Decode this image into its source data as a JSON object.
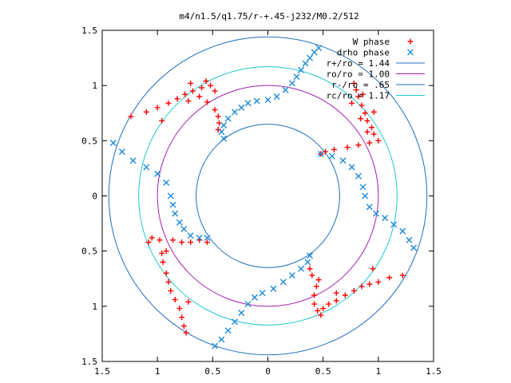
{
  "chart_data": {
    "type": "scatter",
    "title": "m4/n1.5/q1.75/r-+.45-j232/M0.2/512",
    "xlabel": "",
    "ylabel": "",
    "xlim": [
      -1.5,
      1.5
    ],
    "ylim": [
      -1.5,
      1.5
    ],
    "xticks": [
      -1.5,
      -1,
      -0.5,
      0,
      0.5,
      1,
      1.5
    ],
    "yticks": [
      -1.5,
      -1,
      -0.5,
      0,
      0.5,
      1,
      1.5
    ],
    "xtick_labels": [
      "1.5",
      "1",
      "0.5",
      "0",
      "0.5",
      "1",
      "1.5"
    ],
    "ytick_labels": [
      "1.5",
      "1",
      "0.5",
      "0",
      "0.5",
      "1",
      "1.5"
    ],
    "grid": false,
    "legend_position": "top-right",
    "circles": [
      {
        "name": "r+/ro = 1.44",
        "r": 1.44,
        "color": "#1e6fbf"
      },
      {
        "name": "ro/ro = 1.00",
        "r": 1.0,
        "color": "#a020b0"
      },
      {
        "name": "r-/ro = .65",
        "r": 0.65,
        "color": "#1e6fbf"
      },
      {
        "name": "rc/ro = 1.17",
        "r": 1.17,
        "color": "#20c8c8"
      }
    ],
    "series": [
      {
        "name": "W phase",
        "marker": "plus",
        "color": "#ff0000",
        "arms": [
          [
            [
              -1.24,
              0.72
            ],
            [
              -1.1,
              0.76
            ],
            [
              -1.0,
              0.8
            ],
            [
              -0.9,
              0.84
            ],
            [
              -0.82,
              0.88
            ],
            [
              -0.75,
              0.92
            ],
            [
              -0.68,
              0.95
            ],
            [
              -0.62,
              0.9
            ],
            [
              -0.55,
              0.85
            ],
            [
              -0.48,
              0.78
            ],
            [
              -0.45,
              0.72
            ],
            [
              -0.44,
              0.66
            ],
            [
              -0.45,
              0.6
            ],
            [
              -0.48,
              0.95
            ],
            [
              -0.52,
              1.0
            ],
            [
              -0.56,
              1.04
            ],
            [
              -0.6,
              0.98
            ],
            [
              -0.72,
              0.86
            ],
            [
              -0.96,
              0.68
            ],
            [
              -0.7,
              1.02
            ]
          ],
          [
            [
              0.48,
              0.38
            ],
            [
              0.6,
              0.42
            ],
            [
              0.72,
              0.44
            ],
            [
              0.82,
              0.46
            ],
            [
              0.92,
              0.48
            ],
            [
              1.0,
              0.5
            ],
            [
              0.96,
              0.56
            ],
            [
              0.94,
              0.62
            ],
            [
              0.9,
              0.68
            ],
            [
              0.88,
              0.75
            ],
            [
              0.85,
              0.82
            ],
            [
              0.82,
              0.9
            ],
            [
              0.8,
              0.96
            ],
            [
              0.78,
              1.02
            ],
            [
              0.76,
              0.84
            ],
            [
              0.9,
              0.58
            ],
            [
              0.96,
              0.76
            ],
            [
              0.84,
              0.7
            ],
            [
              0.86,
              0.92
            ],
            [
              0.52,
              0.4
            ]
          ],
          [
            [
              1.22,
              -0.72
            ],
            [
              1.1,
              -0.74
            ],
            [
              1.0,
              -0.78
            ],
            [
              0.92,
              -0.8
            ],
            [
              0.85,
              -0.82
            ],
            [
              0.78,
              -0.86
            ],
            [
              0.7,
              -0.9
            ],
            [
              0.62,
              -0.95
            ],
            [
              0.55,
              -0.98
            ],
            [
              0.5,
              -1.02
            ],
            [
              0.45,
              -1.04
            ],
            [
              0.42,
              -0.98
            ],
            [
              0.42,
              -0.9
            ],
            [
              0.44,
              -0.82
            ],
            [
              0.46,
              -0.76
            ],
            [
              0.4,
              -0.72
            ],
            [
              0.38,
              -0.66
            ],
            [
              0.95,
              -0.66
            ],
            [
              0.62,
              -0.88
            ],
            [
              0.48,
              -1.08
            ]
          ],
          [
            [
              -0.55,
              -0.42
            ],
            [
              -0.62,
              -0.4
            ],
            [
              -0.7,
              -0.42
            ],
            [
              -0.78,
              -0.42
            ],
            [
              -0.86,
              -0.4
            ],
            [
              -0.98,
              -0.4
            ],
            [
              -1.05,
              -0.38
            ],
            [
              -1.08,
              -0.42
            ],
            [
              -0.92,
              -0.5
            ],
            [
              -0.95,
              -0.6
            ],
            [
              -0.92,
              -0.7
            ],
            [
              -0.9,
              -0.78
            ],
            [
              -0.88,
              -0.86
            ],
            [
              -0.84,
              -0.94
            ],
            [
              -0.8,
              -1.02
            ],
            [
              -0.78,
              -1.1
            ],
            [
              -0.76,
              -1.18
            ],
            [
              -0.74,
              -1.24
            ],
            [
              -0.72,
              -0.96
            ],
            [
              -0.96,
              -0.52
            ]
          ]
        ]
      },
      {
        "name": "drho phase",
        "marker": "cross",
        "color": "#1e8ad8",
        "arms": [
          [
            [
              -1.4,
              0.48
            ],
            [
              -1.32,
              0.4
            ],
            [
              -1.22,
              0.32
            ],
            [
              -1.1,
              0.26
            ],
            [
              -1.0,
              0.2
            ],
            [
              -0.92,
              0.12
            ],
            [
              -0.88,
              0.0
            ],
            [
              -0.86,
              -0.08
            ],
            [
              -0.84,
              -0.16
            ],
            [
              -0.8,
              -0.24
            ],
            [
              -0.76,
              -0.3
            ],
            [
              -0.7,
              -0.36
            ],
            [
              -0.62,
              -0.38
            ],
            [
              -0.55,
              -0.38
            ]
          ],
          [
            [
              -0.4,
              0.52
            ],
            [
              -0.42,
              0.58
            ],
            [
              -0.4,
              0.64
            ],
            [
              -0.36,
              0.7
            ],
            [
              -0.3,
              0.76
            ],
            [
              -0.24,
              0.8
            ],
            [
              -0.18,
              0.84
            ],
            [
              -0.1,
              0.86
            ],
            [
              0.0,
              0.87
            ],
            [
              0.08,
              0.9
            ],
            [
              0.16,
              0.96
            ],
            [
              0.22,
              1.02
            ],
            [
              0.26,
              1.08
            ],
            [
              0.3,
              1.14
            ],
            [
              0.34,
              1.2
            ],
            [
              0.38,
              1.25
            ],
            [
              0.42,
              1.3
            ],
            [
              0.46,
              1.34
            ]
          ],
          [
            [
              0.48,
              0.38
            ],
            [
              0.58,
              0.36
            ],
            [
              0.68,
              0.32
            ],
            [
              0.76,
              0.26
            ],
            [
              0.82,
              0.18
            ],
            [
              0.86,
              0.08
            ],
            [
              0.88,
              0.0
            ],
            [
              0.92,
              -0.1
            ],
            [
              0.98,
              -0.16
            ],
            [
              1.06,
              -0.2
            ],
            [
              1.14,
              -0.26
            ],
            [
              1.22,
              -0.32
            ],
            [
              1.28,
              -0.4
            ],
            [
              1.32,
              -0.47
            ]
          ],
          [
            [
              0.38,
              -0.54
            ],
            [
              0.36,
              -0.6
            ],
            [
              0.3,
              -0.66
            ],
            [
              0.22,
              -0.72
            ],
            [
              0.14,
              -0.78
            ],
            [
              0.05,
              -0.84
            ],
            [
              -0.05,
              -0.88
            ],
            [
              -0.12,
              -0.92
            ],
            [
              -0.18,
              -0.98
            ],
            [
              -0.24,
              -1.06
            ],
            [
              -0.3,
              -1.14
            ],
            [
              -0.36,
              -1.22
            ],
            [
              -0.42,
              -1.3
            ],
            [
              -0.48,
              -1.36
            ]
          ]
        ]
      }
    ]
  }
}
